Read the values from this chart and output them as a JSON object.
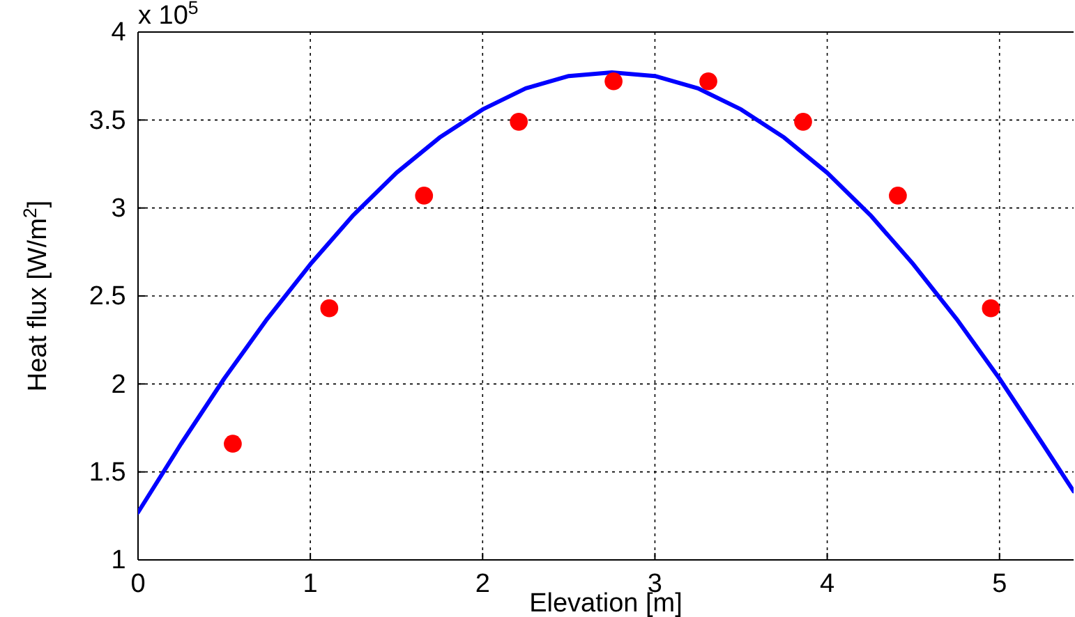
{
  "chart_data": {
    "type": "scatter",
    "xlabel": "Elevation [m]",
    "ylabel": "Heat flux [W/m$^{2}$]",
    "annotations": [
      "x 10$^{5}$"
    ],
    "xlim": [
      0,
      5.43
    ],
    "xticks": [
      0,
      1,
      2,
      3,
      4,
      5
    ],
    "ylim": [
      1,
      4
    ],
    "yticks": [
      1,
      1.5,
      2,
      2.5,
      3,
      3.5,
      4
    ],
    "grid": true,
    "series": [
      {
        "type": "line",
        "color": "#0000ff",
        "marker": "none",
        "line_style": "solid",
        "x": [
          0,
          0.25,
          0.5,
          0.75,
          1,
          1.25,
          1.5,
          1.75,
          2,
          2.25,
          2.5,
          2.75,
          3,
          3.25,
          3.5,
          3.75,
          4,
          4.25,
          4.5,
          4.75,
          5,
          5.25,
          5.43
        ],
        "values": [
          1.27,
          1.66,
          2.03,
          2.37,
          2.68,
          2.96,
          3.2,
          3.4,
          3.56,
          3.68,
          3.75,
          3.77,
          3.75,
          3.68,
          3.56,
          3.4,
          3.2,
          2.96,
          2.68,
          2.37,
          2.03,
          1.66,
          1.39
        ]
      },
      {
        "color": "#ff0000",
        "marker": "circle",
        "x": [
          0.55,
          1.11,
          1.66,
          2.21,
          2.76,
          3.31,
          3.86,
          4.41,
          4.95
        ],
        "values": [
          1.66,
          2.43,
          3.07,
          3.49,
          3.72,
          3.72,
          3.49,
          3.07,
          2.43
        ]
      }
    ]
  }
}
